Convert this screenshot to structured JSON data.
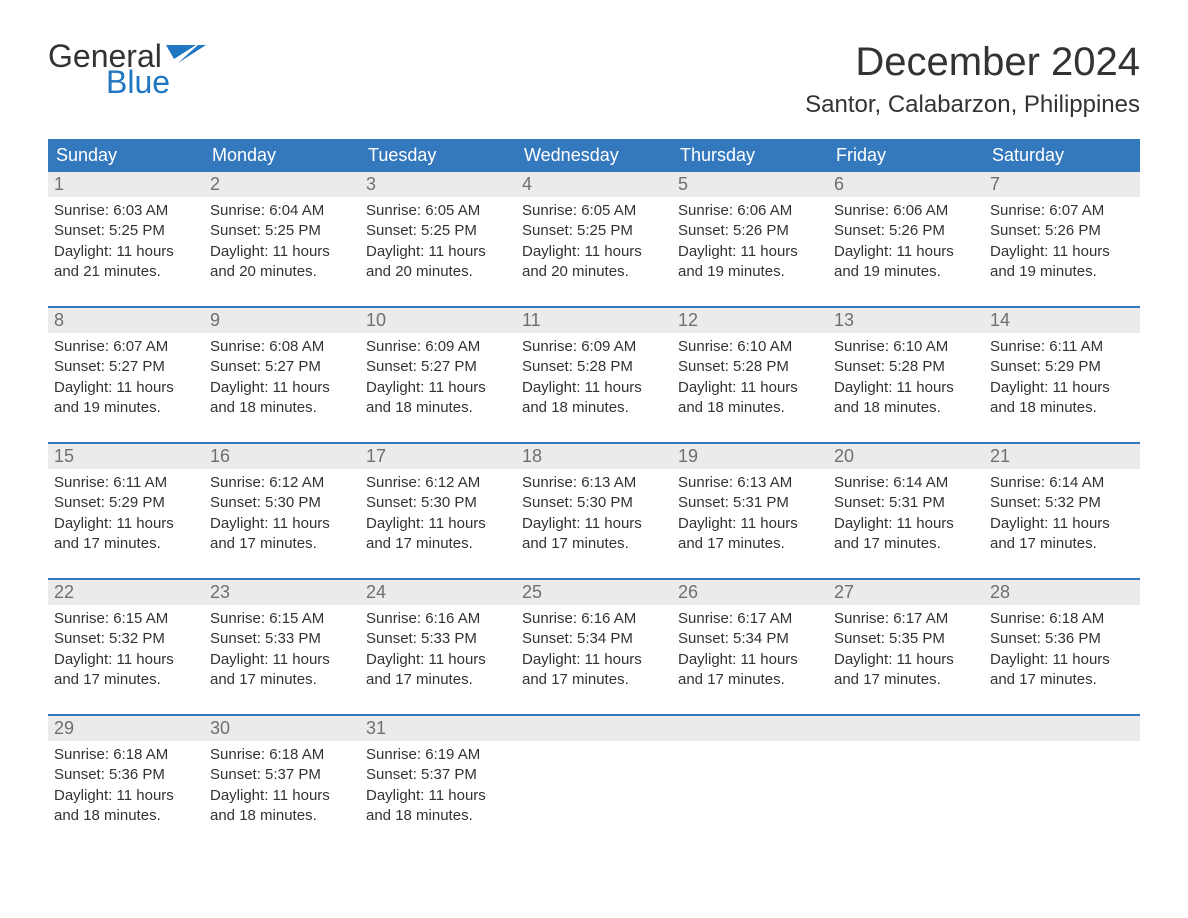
{
  "brand": {
    "word1": "General",
    "word2": "Blue",
    "word1_color": "#333333",
    "word2_color": "#2076c0",
    "flag_color": "#2076c0"
  },
  "title": "December 2024",
  "location": "Santor, Calabarzon, Philippines",
  "colors": {
    "header_bg": "#3478bd",
    "header_text": "#ffffff",
    "daynum_bg": "#ebebeb",
    "daynum_text": "#6f6f6f",
    "body_text": "#333333",
    "week_border": "#3478bd",
    "background": "#ffffff"
  },
  "typography": {
    "title_fontsize": 40,
    "location_fontsize": 24,
    "dow_fontsize": 18,
    "daynum_fontsize": 18,
    "body_fontsize": 15,
    "logo_fontsize": 32
  },
  "days_of_week": [
    "Sunday",
    "Monday",
    "Tuesday",
    "Wednesday",
    "Thursday",
    "Friday",
    "Saturday"
  ],
  "weeks": [
    [
      {
        "n": "1",
        "sunrise": "Sunrise: 6:03 AM",
        "sunset": "Sunset: 5:25 PM",
        "d1": "Daylight: 11 hours",
        "d2": "and 21 minutes."
      },
      {
        "n": "2",
        "sunrise": "Sunrise: 6:04 AM",
        "sunset": "Sunset: 5:25 PM",
        "d1": "Daylight: 11 hours",
        "d2": "and 20 minutes."
      },
      {
        "n": "3",
        "sunrise": "Sunrise: 6:05 AM",
        "sunset": "Sunset: 5:25 PM",
        "d1": "Daylight: 11 hours",
        "d2": "and 20 minutes."
      },
      {
        "n": "4",
        "sunrise": "Sunrise: 6:05 AM",
        "sunset": "Sunset: 5:25 PM",
        "d1": "Daylight: 11 hours",
        "d2": "and 20 minutes."
      },
      {
        "n": "5",
        "sunrise": "Sunrise: 6:06 AM",
        "sunset": "Sunset: 5:26 PM",
        "d1": "Daylight: 11 hours",
        "d2": "and 19 minutes."
      },
      {
        "n": "6",
        "sunrise": "Sunrise: 6:06 AM",
        "sunset": "Sunset: 5:26 PM",
        "d1": "Daylight: 11 hours",
        "d2": "and 19 minutes."
      },
      {
        "n": "7",
        "sunrise": "Sunrise: 6:07 AM",
        "sunset": "Sunset: 5:26 PM",
        "d1": "Daylight: 11 hours",
        "d2": "and 19 minutes."
      }
    ],
    [
      {
        "n": "8",
        "sunrise": "Sunrise: 6:07 AM",
        "sunset": "Sunset: 5:27 PM",
        "d1": "Daylight: 11 hours",
        "d2": "and 19 minutes."
      },
      {
        "n": "9",
        "sunrise": "Sunrise: 6:08 AM",
        "sunset": "Sunset: 5:27 PM",
        "d1": "Daylight: 11 hours",
        "d2": "and 18 minutes."
      },
      {
        "n": "10",
        "sunrise": "Sunrise: 6:09 AM",
        "sunset": "Sunset: 5:27 PM",
        "d1": "Daylight: 11 hours",
        "d2": "and 18 minutes."
      },
      {
        "n": "11",
        "sunrise": "Sunrise: 6:09 AM",
        "sunset": "Sunset: 5:28 PM",
        "d1": "Daylight: 11 hours",
        "d2": "and 18 minutes."
      },
      {
        "n": "12",
        "sunrise": "Sunrise: 6:10 AM",
        "sunset": "Sunset: 5:28 PM",
        "d1": "Daylight: 11 hours",
        "d2": "and 18 minutes."
      },
      {
        "n": "13",
        "sunrise": "Sunrise: 6:10 AM",
        "sunset": "Sunset: 5:28 PM",
        "d1": "Daylight: 11 hours",
        "d2": "and 18 minutes."
      },
      {
        "n": "14",
        "sunrise": "Sunrise: 6:11 AM",
        "sunset": "Sunset: 5:29 PM",
        "d1": "Daylight: 11 hours",
        "d2": "and 18 minutes."
      }
    ],
    [
      {
        "n": "15",
        "sunrise": "Sunrise: 6:11 AM",
        "sunset": "Sunset: 5:29 PM",
        "d1": "Daylight: 11 hours",
        "d2": "and 17 minutes."
      },
      {
        "n": "16",
        "sunrise": "Sunrise: 6:12 AM",
        "sunset": "Sunset: 5:30 PM",
        "d1": "Daylight: 11 hours",
        "d2": "and 17 minutes."
      },
      {
        "n": "17",
        "sunrise": "Sunrise: 6:12 AM",
        "sunset": "Sunset: 5:30 PM",
        "d1": "Daylight: 11 hours",
        "d2": "and 17 minutes."
      },
      {
        "n": "18",
        "sunrise": "Sunrise: 6:13 AM",
        "sunset": "Sunset: 5:30 PM",
        "d1": "Daylight: 11 hours",
        "d2": "and 17 minutes."
      },
      {
        "n": "19",
        "sunrise": "Sunrise: 6:13 AM",
        "sunset": "Sunset: 5:31 PM",
        "d1": "Daylight: 11 hours",
        "d2": "and 17 minutes."
      },
      {
        "n": "20",
        "sunrise": "Sunrise: 6:14 AM",
        "sunset": "Sunset: 5:31 PM",
        "d1": "Daylight: 11 hours",
        "d2": "and 17 minutes."
      },
      {
        "n": "21",
        "sunrise": "Sunrise: 6:14 AM",
        "sunset": "Sunset: 5:32 PM",
        "d1": "Daylight: 11 hours",
        "d2": "and 17 minutes."
      }
    ],
    [
      {
        "n": "22",
        "sunrise": "Sunrise: 6:15 AM",
        "sunset": "Sunset: 5:32 PM",
        "d1": "Daylight: 11 hours",
        "d2": "and 17 minutes."
      },
      {
        "n": "23",
        "sunrise": "Sunrise: 6:15 AM",
        "sunset": "Sunset: 5:33 PM",
        "d1": "Daylight: 11 hours",
        "d2": "and 17 minutes."
      },
      {
        "n": "24",
        "sunrise": "Sunrise: 6:16 AM",
        "sunset": "Sunset: 5:33 PM",
        "d1": "Daylight: 11 hours",
        "d2": "and 17 minutes."
      },
      {
        "n": "25",
        "sunrise": "Sunrise: 6:16 AM",
        "sunset": "Sunset: 5:34 PM",
        "d1": "Daylight: 11 hours",
        "d2": "and 17 minutes."
      },
      {
        "n": "26",
        "sunrise": "Sunrise: 6:17 AM",
        "sunset": "Sunset: 5:34 PM",
        "d1": "Daylight: 11 hours",
        "d2": "and 17 minutes."
      },
      {
        "n": "27",
        "sunrise": "Sunrise: 6:17 AM",
        "sunset": "Sunset: 5:35 PM",
        "d1": "Daylight: 11 hours",
        "d2": "and 17 minutes."
      },
      {
        "n": "28",
        "sunrise": "Sunrise: 6:18 AM",
        "sunset": "Sunset: 5:36 PM",
        "d1": "Daylight: 11 hours",
        "d2": "and 17 minutes."
      }
    ],
    [
      {
        "n": "29",
        "sunrise": "Sunrise: 6:18 AM",
        "sunset": "Sunset: 5:36 PM",
        "d1": "Daylight: 11 hours",
        "d2": "and 18 minutes."
      },
      {
        "n": "30",
        "sunrise": "Sunrise: 6:18 AM",
        "sunset": "Sunset: 5:37 PM",
        "d1": "Daylight: 11 hours",
        "d2": "and 18 minutes."
      },
      {
        "n": "31",
        "sunrise": "Sunrise: 6:19 AM",
        "sunset": "Sunset: 5:37 PM",
        "d1": "Daylight: 11 hours",
        "d2": "and 18 minutes."
      },
      {
        "empty": true
      },
      {
        "empty": true
      },
      {
        "empty": true
      },
      {
        "empty": true
      }
    ]
  ]
}
